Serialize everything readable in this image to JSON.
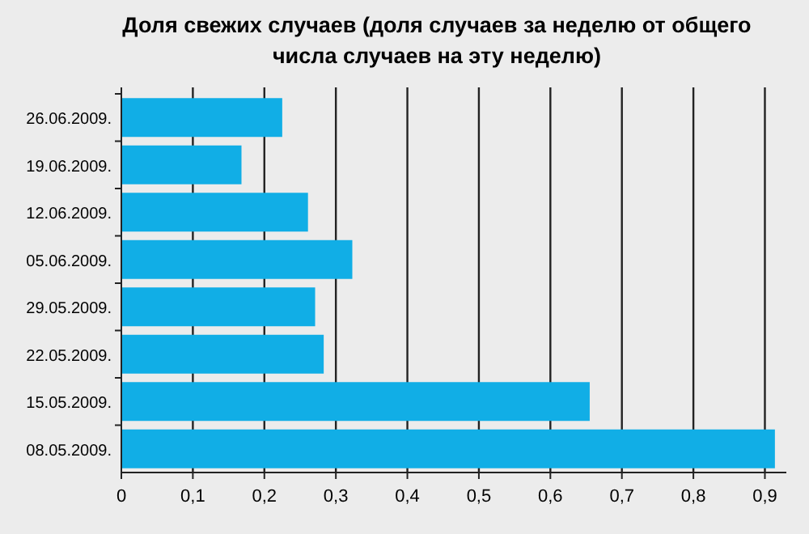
{
  "chart_data": {
    "type": "bar",
    "orientation": "horizontal",
    "title": "Доля свежих случаев (доля случаев за неделю от общего числа случаев на эту неделю)",
    "categories": [
      "26.06.2009.",
      "19.06.2009.",
      "12.06.2009.",
      "05.06.2009.",
      "29.05.2009.",
      "22.05.2009.",
      "15.05.2009.",
      "08.05.2009."
    ],
    "values": [
      0.225,
      0.168,
      0.261,
      0.323,
      0.271,
      0.283,
      0.655,
      0.914
    ],
    "color": "#11aee6",
    "xlim": [
      0,
      0.93
    ],
    "xticks": [
      0,
      {
        "value": 0.1,
        "label": "0,1"
      },
      {
        "value": 0.2,
        "label": "0,2"
      },
      {
        "value": 0.3,
        "label": "0,3"
      },
      {
        "value": 0.4,
        "label": "0,4"
      },
      {
        "value": 0.5,
        "label": "0,5"
      },
      {
        "value": 0.6,
        "label": "0,6"
      },
      {
        "value": 0.7,
        "label": "0,7"
      },
      {
        "value": 0.8,
        "label": "0,8"
      },
      {
        "value": 0.9,
        "label": "0,9"
      }
    ],
    "grid": "x"
  }
}
